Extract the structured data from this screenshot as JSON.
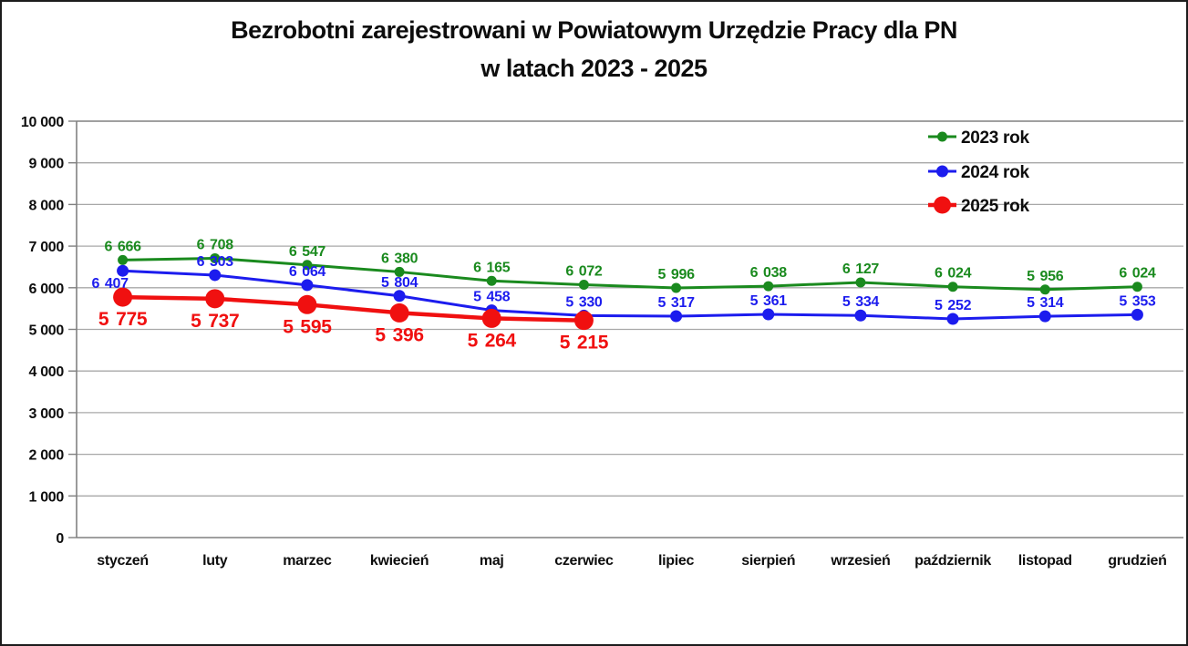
{
  "title": {
    "line1": "Bezrobotni zarejestrowani w Powiatowym Urzędzie Pracy dla PN",
    "line2": "w latach 2023 - 2025"
  },
  "chart_data": {
    "type": "line",
    "title": "Bezrobotni zarejestrowani w Powiatowym Urzędzie Pracy dla PN w latach 2023 - 2025",
    "xlabel": "",
    "ylabel": "",
    "grid": true,
    "legend_position": "top-right",
    "ylim": [
      0,
      10000
    ],
    "y_step": 1000,
    "y_tick_labels": [
      "0",
      "1 000",
      "2 000",
      "3 000",
      "4 000",
      "5 000",
      "6 000",
      "7 000",
      "8 000",
      "9 000",
      "10 000"
    ],
    "categories": [
      "styczeń",
      "luty",
      "marzec",
      "kwiecień",
      "maj",
      "czerwiec",
      "lipiec",
      "sierpień",
      "wrzesień",
      "październik",
      "listopad",
      "grudzień"
    ],
    "series": [
      {
        "name": "2023 rok",
        "color": "#1a8a1e",
        "values": [
          6666,
          6708,
          6547,
          6380,
          6165,
          6072,
          5996,
          6038,
          6127,
          6024,
          5956,
          6024
        ],
        "line_width": 3,
        "marker_radius": 5.5,
        "label_font": 16,
        "label_position": "above"
      },
      {
        "name": "2024 rok",
        "color": "#1c1cee",
        "values": [
          6407,
          6303,
          6064,
          5804,
          5458,
          5330,
          5317,
          5361,
          5334,
          5252,
          5314,
          5353
        ],
        "line_width": 3,
        "marker_radius": 6.5,
        "label_font": 16,
        "label_position": "above",
        "first_label_below": true
      },
      {
        "name": "2025 rok",
        "color": "#f01010",
        "values": [
          5775,
          5737,
          5595,
          5396,
          5264,
          5215
        ],
        "line_width": 4.5,
        "marker_radius": 10.5,
        "label_font": 21,
        "label_position": "below"
      }
    ]
  },
  "colors": {
    "grid_line": "#a8a8a8",
    "axis_frame": "#808080",
    "axis_text": "#0d0d0d",
    "background": "#ffffff"
  }
}
